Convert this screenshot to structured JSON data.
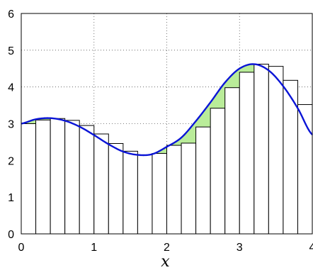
{
  "chart_data": {
    "type": "bar",
    "title": "",
    "xlabel": "x",
    "ylabel": "",
    "xlim": [
      0,
      4
    ],
    "ylim": [
      0,
      6
    ],
    "xticks": [
      0,
      1,
      2,
      3,
      4
    ],
    "yticks": [
      0,
      1,
      2,
      3,
      4,
      5,
      6
    ],
    "grid": true,
    "bar_width": 0.2,
    "bars": [
      {
        "x0": 0.0,
        "value": 3.0
      },
      {
        "x0": 0.2,
        "value": 3.1
      },
      {
        "x0": 0.4,
        "value": 3.14
      },
      {
        "x0": 0.6,
        "value": 3.09
      },
      {
        "x0": 0.8,
        "value": 2.95
      },
      {
        "x0": 1.0,
        "value": 2.72
      },
      {
        "x0": 1.2,
        "value": 2.46
      },
      {
        "x0": 1.4,
        "value": 2.25
      },
      {
        "x0": 1.6,
        "value": 2.15
      },
      {
        "x0": 1.8,
        "value": 2.19
      },
      {
        "x0": 2.0,
        "value": 2.41
      },
      {
        "x0": 2.2,
        "value": 2.47
      },
      {
        "x0": 2.4,
        "value": 2.91
      },
      {
        "x0": 2.6,
        "value": 3.42
      },
      {
        "x0": 2.8,
        "value": 3.98
      },
      {
        "x0": 3.0,
        "value": 4.4
      },
      {
        "x0": 3.2,
        "value": 4.62
      },
      {
        "x0": 3.4,
        "value": 4.56
      },
      {
        "x0": 3.6,
        "value": 4.18
      },
      {
        "x0": 3.8,
        "value": 3.52
      }
    ],
    "curve": {
      "x": [
        0.0,
        0.2,
        0.4,
        0.6,
        0.8,
        1.0,
        1.2,
        1.4,
        1.6,
        1.8,
        2.0,
        2.2,
        2.4,
        2.6,
        2.8,
        3.0,
        3.2,
        3.4,
        3.6,
        3.8,
        4.0
      ],
      "y": [
        3.0,
        3.12,
        3.15,
        3.08,
        2.92,
        2.69,
        2.44,
        2.24,
        2.15,
        2.17,
        2.37,
        2.62,
        3.07,
        3.58,
        4.12,
        4.5,
        4.62,
        4.45,
        4.02,
        3.42,
        2.7
      ]
    },
    "colors": {
      "curve": "#0a14d6",
      "shaded_area": "#b9ec99",
      "bar_fill": "#ffffff",
      "bar_edge": "#000000"
    }
  }
}
